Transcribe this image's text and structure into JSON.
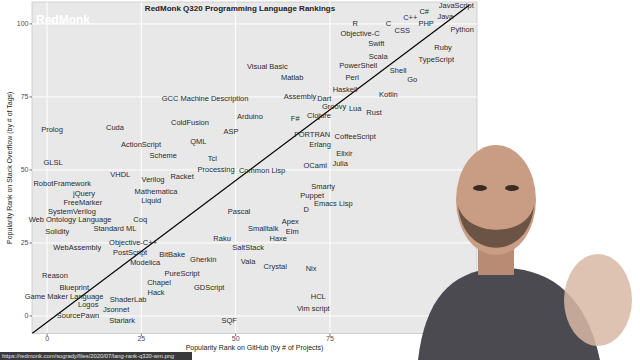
{
  "chart_data": {
    "type": "scatter",
    "title": "RedMonk Q320 Programming Language Rankings",
    "x_label": "Popularity Rank on GitHub (by # of Projects)",
    "y_label": "Popularity Rank on Stack Overflow (by # of Tags)",
    "annotations": [
      "RedMonk",
      "https://redmonk.com/sogrady/files/2020/07/lang-rank-q320-wm.png"
    ],
    "xlim": [
      -4,
      114
    ],
    "ylim": [
      -6,
      107.5
    ],
    "xticks": [
      0,
      25,
      50,
      75
    ],
    "yticks": [
      0,
      25,
      50,
      75,
      100
    ],
    "grid": true,
    "series": [
      {
        "type": "scatter",
        "marker": "text",
        "color": "#2b2b2b",
        "labels": [
          "JavaScript",
          "Python",
          "Java",
          "PHP",
          "C#",
          "C++",
          "CSS",
          "C",
          "R",
          "Objective-C",
          "Swift",
          "Ruby",
          "TypeScript",
          "Scala",
          "PowerShell",
          "Shell",
          "Perl",
          "Go",
          "Haskell",
          "Kotlin",
          "Dart",
          "Groovy",
          "Lua",
          "Rust",
          "Clojure",
          "Visual Basic",
          "Matlab",
          "GCC Machine Description",
          "Assembly",
          "F#",
          "Arduino",
          "Prolog",
          "Cuda",
          "ColdFusion",
          "ASP",
          "FORTRAN",
          "CoffeeScript",
          "ActionScript",
          "QML",
          "Erlang",
          "Scheme",
          "Tcl",
          "Elixir",
          "Julia",
          "GLSL",
          "Processing",
          "Common Lisp",
          "OCaml",
          "VHDL",
          "Verilog",
          "Racket",
          "RobotFramework",
          "jQuery",
          "Mathematica",
          "Smarty",
          "Puppet",
          "Emacs Lisp",
          "FreeMarker",
          "Liquid",
          "SystemVerilog",
          "Web Ontology Language",
          "Standard ML",
          "Coq",
          "Pascal",
          "D",
          "Smalltalk",
          "Apex",
          "Elm",
          "Solidity",
          "Haxe",
          "Raku",
          "SaltStack",
          "WebAssembly",
          "Objective-C++",
          "PostScript",
          "Vala",
          "BitBake",
          "Gherkin",
          "Modelica",
          "Crystal",
          "Nix",
          "PureScript",
          "Reason",
          "Blueprint",
          "Chapel",
          "Hack",
          "GDScript",
          "Game Maker Language",
          "HCL",
          "Logos",
          "ShaderLab",
          "Jsonnet",
          "Vim script",
          "SourcePawn",
          "Starlark",
          "SQF"
        ],
        "x": [
          108.5,
          110.1,
          105.6,
          100.5,
          100,
          96.3,
          94.2,
          90.5,
          81.7,
          83.0,
          87.3,
          105.0,
          103.2,
          87.8,
          82.5,
          93.1,
          80.9,
          96.8,
          79.0,
          90.5,
          73.5,
          76.1,
          81.7,
          86.7,
          72.1,
          58.4,
          65.0,
          41.9,
          67.1,
          65.8,
          53.8,
          1.3,
          18.0,
          37.9,
          48.8,
          70.3,
          81.7,
          24.9,
          40.1,
          72.4,
          30.8,
          43.8,
          78.8,
          77.7,
          1.6,
          44.8,
          57.0,
          71.1,
          19.4,
          28.1,
          35.8,
          4.0,
          9.8,
          28.9,
          73.2,
          70.3,
          75.9,
          9.5,
          27.6,
          6.6,
          6.1,
          18.0,
          24.7,
          50.9,
          68.7,
          57.3,
          64.5,
          65.0,
          2.7,
          61.3,
          46.4,
          53.3,
          8.0,
          22.8,
          22.0,
          53.3,
          33.2,
          41.4,
          26.0,
          60.5,
          70.0,
          35.8,
          2.1,
          7.2,
          29.7,
          28.9,
          43.0,
          4.5,
          71.9,
          10.9,
          21.5,
          18.3,
          70.6,
          8.2,
          19.9,
          48.3
        ],
        "values": [
          106.2,
          98.2,
          102.4,
          100,
          104.1,
          102.1,
          97.9,
          100,
          100,
          96.6,
          93.2,
          91.8,
          87.7,
          89.0,
          85.6,
          84.2,
          81.8,
          80.8,
          77.4,
          75.7,
          74.3,
          71.6,
          70.9,
          69.5,
          68.5,
          85.3,
          81.5,
          74.3,
          75.0,
          67.5,
          68.2,
          63.7,
          64.4,
          66.1,
          63.0,
          62.3,
          61.6,
          58.6,
          59.9,
          58.6,
          55.1,
          53.8,
          55.5,
          52.1,
          52.7,
          50.0,
          49.7,
          51.4,
          48.6,
          46.6,
          47.6,
          45.5,
          42.1,
          42.5,
          44.5,
          41.4,
          38.4,
          38.7,
          39.4,
          35.6,
          32.9,
          29.8,
          33.2,
          35.6,
          36.6,
          29.8,
          32.2,
          28.8,
          28.8,
          26.4,
          26.4,
          23.3,
          23.3,
          25.0,
          21.6,
          18.8,
          21.2,
          19.2,
          18.2,
          16.8,
          16.1,
          14.7,
          13.7,
          9.9,
          11.3,
          7.9,
          9.9,
          6.5,
          6.5,
          3.8,
          5.5,
          2.1,
          2.4,
          0.3,
          -1.4,
          -1.7
        ]
      },
      {
        "type": "line",
        "color": "#000000",
        "line_style": "solid",
        "x": [
          -4,
          112
        ],
        "values": [
          -6,
          106.5
        ]
      }
    ]
  }
}
